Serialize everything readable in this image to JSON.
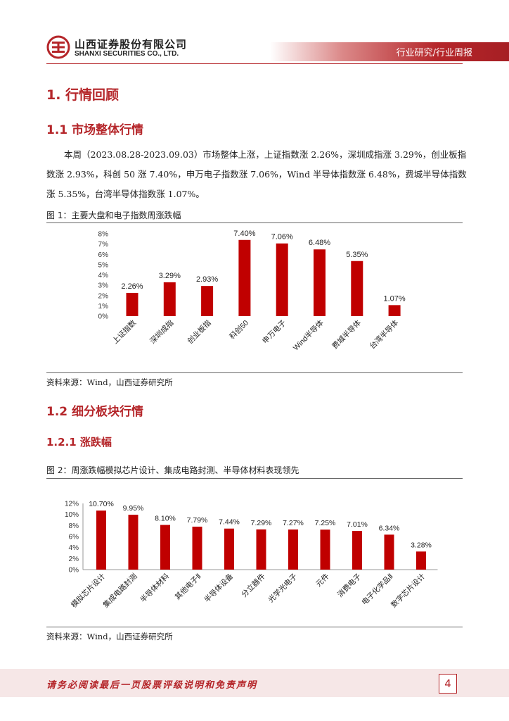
{
  "header": {
    "company_cn": "山西证券股份有限公司",
    "company_en": "SHANXI SECURITIES CO., LTD.",
    "report_tag": "行业研究/行业周报",
    "logo_icon": "shanxi-securities-logo-icon",
    "accent_color": "#b5262a"
  },
  "section1": {
    "title": "1. 行情回顾"
  },
  "section1_1": {
    "title": "1.1  市场整体行情",
    "paragraph": "本周（2023.08.28-2023.09.03）市场整体上涨，上证指数涨 2.26%，深圳成指涨 3.29%，创业板指数涨 2.93%，科创 50 涨 7.40%，申万电子指数涨 7.06%，Wind 半导体指数涨 6.48%，费城半导体指数涨 5.35%，台湾半导体指数涨 1.07%。"
  },
  "figure1": {
    "caption": "图 1：主要大盘和电子指数周涨跌幅",
    "source": "资料来源：Wind，山西证券研究所"
  },
  "section1_2": {
    "title": "1.2  细分板块行情"
  },
  "section1_2_1": {
    "title": "1.2.1  涨跌幅"
  },
  "figure2": {
    "caption": "图 2：周涨跌幅模拟芯片设计、集成电路封测、半导体材料表现领先",
    "source": "资料来源：Wind，山西证券研究所"
  },
  "footer": {
    "disclaimer": "请务必阅读最后一页股票评级说明和免责声明",
    "page_number": "4",
    "band_color": "#f6e7e7"
  },
  "chart_data": [
    {
      "type": "bar",
      "title": "",
      "xlabel": "",
      "ylabel": "",
      "categories": [
        "上证指数",
        "深圳成指",
        "创业板指",
        "科创50",
        "申万电子",
        "Wind半导体",
        "费城半导体",
        "台湾半导体"
      ],
      "values": [
        2.26,
        3.29,
        2.93,
        7.4,
        7.06,
        6.48,
        5.35,
        1.07
      ],
      "value_labels": [
        "2.26%",
        "3.29%",
        "2.93%",
        "7.40%",
        "7.06%",
        "6.48%",
        "5.35%",
        "1.07%"
      ],
      "yticks": [
        "0%",
        "1%",
        "2%",
        "3%",
        "4%",
        "5%",
        "6%",
        "7%",
        "8%"
      ],
      "ylim": [
        0,
        8
      ],
      "grid": false,
      "legend": "none",
      "bar_color": "#c00000"
    },
    {
      "type": "bar",
      "title": "",
      "xlabel": "",
      "ylabel": "",
      "categories": [
        "模拟芯片设计",
        "集成电路封测",
        "半导体材料",
        "其他电子Ⅱ",
        "半导体设备",
        "分立器件",
        "光学光电子",
        "元件",
        "消费电子",
        "电子化学品Ⅱ",
        "数字芯片设计"
      ],
      "values": [
        10.7,
        9.95,
        8.1,
        7.79,
        7.44,
        7.29,
        7.27,
        7.25,
        7.01,
        6.34,
        3.28
      ],
      "value_labels": [
        "10.70%",
        "9.95%",
        "8.10%",
        "7.79%",
        "7.44%",
        "7.29%",
        "7.27%",
        "7.25%",
        "7.01%",
        "6.34%",
        "3.28%"
      ],
      "yticks": [
        "0%",
        "2%",
        "4%",
        "6%",
        "8%",
        "10%",
        "12%"
      ],
      "ylim": [
        0,
        12
      ],
      "grid": false,
      "legend": "none",
      "bar_color": "#c00000"
    }
  ]
}
